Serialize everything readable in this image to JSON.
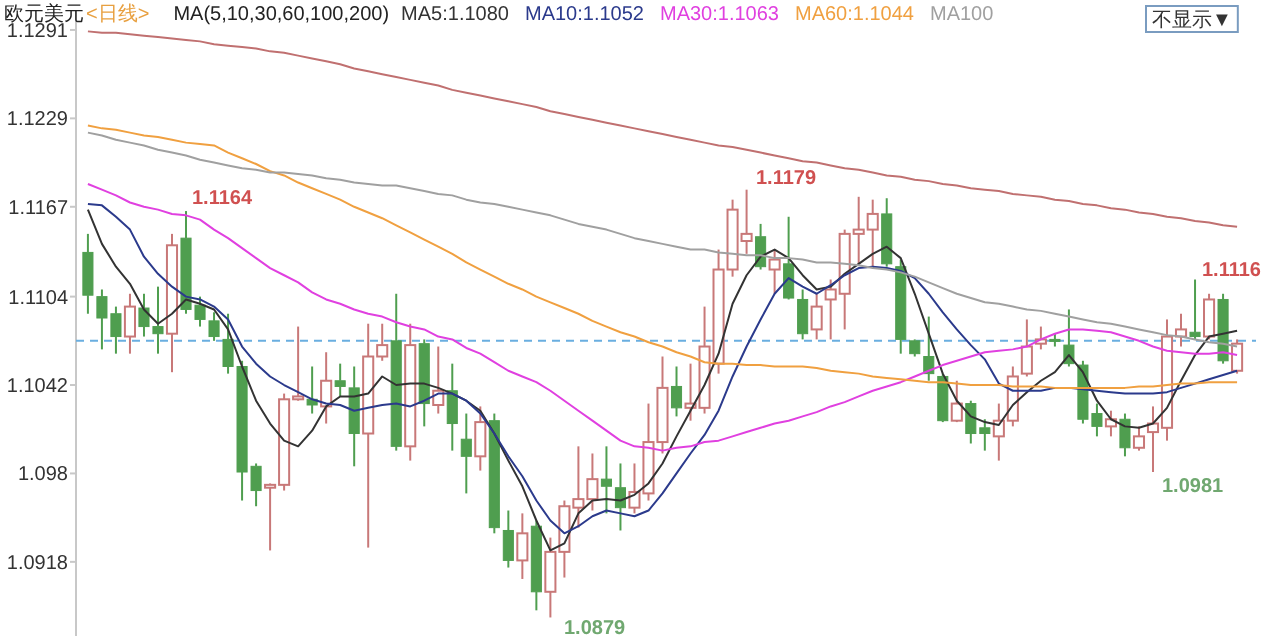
{
  "chart_data": {
    "type": "candlestick",
    "title": "欧元美元",
    "subtitle": "<日线>",
    "legend_title": "MA(5,10,30,60,100,200)",
    "legend": "top",
    "tick_labels": "y",
    "categories": [
      null,
      null,
      null,
      null,
      null,
      null,
      null,
      null,
      null,
      null,
      null,
      null,
      null,
      null,
      null,
      null,
      null,
      null,
      null,
      null,
      null,
      null,
      null,
      null,
      null,
      null,
      null,
      null,
      null,
      null,
      null,
      null,
      null,
      null,
      null,
      null,
      null,
      null,
      null,
      null,
      null,
      null,
      null,
      null,
      null,
      null,
      null,
      null,
      null,
      null,
      null,
      null,
      null,
      null,
      null,
      null,
      null,
      null,
      null,
      null,
      null,
      null,
      null,
      null,
      null,
      null,
      null,
      null,
      null,
      null,
      null,
      null,
      null,
      null,
      null,
      null,
      null,
      null,
      null,
      null,
      null,
      null,
      null
    ],
    "ohlc": [
      [
        1.1135,
        1.1148,
        1.1092,
        1.1105
      ],
      [
        1.1104,
        1.1109,
        1.1067,
        1.1089
      ],
      [
        1.1092,
        1.1097,
        1.1064,
        1.1076
      ],
      [
        1.1076,
        1.1106,
        1.1064,
        1.1097
      ],
      [
        1.1096,
        1.1106,
        1.1076,
        1.1083
      ],
      [
        1.1083,
        1.1111,
        1.1064,
        1.1078
      ],
      [
        1.1078,
        1.1148,
        1.1051,
        1.114
      ],
      [
        1.1145,
        1.1164,
        1.1092,
        1.1095
      ],
      [
        1.1098,
        1.1104,
        1.1083,
        1.1088
      ],
      [
        1.1087,
        1.1093,
        1.1073,
        1.1076
      ],
      [
        1.1074,
        1.1092,
        1.105,
        1.1055
      ],
      [
        1.1055,
        1.1059,
        1.0961,
        1.0981
      ],
      [
        1.0985,
        1.0987,
        1.0957,
        1.0968
      ],
      [
        1.097,
        1.0973,
        1.0926,
        1.0972
      ],
      [
        1.0972,
        1.1036,
        1.0968,
        1.1032
      ],
      [
        1.1032,
        1.1083,
        1.1031,
        1.1034
      ],
      [
        1.1032,
        1.1055,
        1.1022,
        1.1028
      ],
      [
        1.1027,
        1.1065,
        1.1015,
        1.1045
      ],
      [
        1.1045,
        1.1057,
        1.1034,
        1.1041
      ],
      [
        1.104,
        1.1055,
        1.0985,
        1.1008
      ],
      [
        1.1008,
        1.1085,
        1.0928,
        1.1062
      ],
      [
        1.1062,
        1.1085,
        1.1059,
        1.107
      ],
      [
        1.1073,
        1.1106,
        1.0996,
        1.0999
      ],
      [
        1.0999,
        1.1085,
        1.0989,
        1.107
      ],
      [
        1.1071,
        1.1074,
        1.1013,
        1.1029
      ],
      [
        1.1028,
        1.1069,
        1.1022,
        1.1038
      ],
      [
        1.1038,
        1.1057,
        1.0996,
        1.1015
      ],
      [
        1.1004,
        1.1022,
        1.0966,
        1.0992
      ],
      [
        1.0992,
        1.1027,
        1.0982,
        1.1016
      ],
      [
        1.1017,
        1.1022,
        1.0938,
        1.0942
      ],
      [
        1.094,
        1.0954,
        1.0914,
        1.0919
      ],
      [
        1.0919,
        1.0952,
        1.0906,
        1.0938
      ],
      [
        1.0943,
        1.0947,
        1.0884,
        1.0897
      ],
      [
        1.0897,
        1.0935,
        1.0879,
        1.0925
      ],
      [
        1.0925,
        1.0961,
        1.0907,
        1.0957
      ],
      [
        1.0956,
        1.0999,
        1.0942,
        1.0962
      ],
      [
        1.0962,
        1.0994,
        1.0954,
        1.0976
      ],
      [
        1.0976,
        1.0999,
        1.0952,
        1.0971
      ],
      [
        1.097,
        1.0987,
        1.094,
        1.0956
      ],
      [
        1.0956,
        1.0987,
        1.0952,
        1.0967
      ],
      [
        1.0966,
        1.1029,
        1.0961,
        1.1002
      ],
      [
        1.1002,
        1.1062,
        1.0994,
        1.104
      ],
      [
        1.1041,
        1.1055,
        1.102,
        1.1026
      ],
      [
        1.1026,
        1.1057,
        1.1017,
        1.1029
      ],
      [
        1.1026,
        1.1097,
        1.1022,
        1.1069
      ],
      [
        1.1057,
        1.1137,
        1.105,
        1.1123
      ],
      [
        1.1123,
        1.1172,
        1.1118,
        1.1165
      ],
      [
        1.1143,
        1.1179,
        1.1134,
        1.1148
      ],
      [
        1.1146,
        1.1155,
        1.1123,
        1.1125
      ],
      [
        1.1123,
        1.1137,
        1.1106,
        1.113
      ],
      [
        1.1127,
        1.116,
        1.1102,
        1.1103
      ],
      [
        1.1102,
        1.1109,
        1.1074,
        1.1078
      ],
      [
        1.1081,
        1.1106,
        1.1074,
        1.1097
      ],
      [
        1.1102,
        1.1116,
        1.1074,
        1.1109
      ],
      [
        1.1106,
        1.1151,
        1.1081,
        1.1148
      ],
      [
        1.1148,
        1.1174,
        1.1127,
        1.1151
      ],
      [
        1.1151,
        1.1172,
        1.1125,
        1.1162
      ],
      [
        1.1162,
        1.1173,
        1.1125,
        1.1127
      ],
      [
        1.1125,
        1.113,
        1.1064,
        1.1074
      ],
      [
        1.1073,
        1.1074,
        1.1062,
        1.1064
      ],
      [
        1.1062,
        1.109,
        1.1045,
        1.105
      ],
      [
        1.1048,
        1.105,
        1.1016,
        1.1017
      ],
      [
        1.1017,
        1.1045,
        1.1016,
        1.1029
      ],
      [
        1.1029,
        1.1031,
        1.1001,
        1.1008
      ],
      [
        1.1012,
        1.1018,
        1.0996,
        1.1008
      ],
      [
        1.1006,
        1.1029,
        1.0989,
        1.1017
      ],
      [
        1.1017,
        1.1055,
        1.1013,
        1.1048
      ],
      [
        1.105,
        1.1088,
        1.1048,
        1.1069
      ],
      [
        1.1071,
        1.1083,
        1.1067,
        1.1074
      ],
      [
        1.1074,
        1.1078,
        1.1069,
        1.1073
      ],
      [
        1.107,
        1.1095,
        1.1055,
        1.1057
      ],
      [
        1.1056,
        1.1059,
        1.1015,
        1.1018
      ],
      [
        1.1022,
        1.1029,
        1.1006,
        1.1013
      ],
      [
        1.1013,
        1.1024,
        1.1006,
        1.1018
      ],
      [
        1.1018,
        1.1022,
        1.0992,
        1.0998
      ],
      [
        1.0998,
        1.1013,
        1.0996,
        1.1006
      ],
      [
        1.1009,
        1.1027,
        1.0981,
        1.1015
      ],
      [
        1.1012,
        1.1088,
        1.1003,
        1.1076
      ],
      [
        1.1076,
        1.1092,
        1.1069,
        1.1081
      ],
      [
        1.1079,
        1.1116,
        1.1074,
        1.1076
      ],
      [
        1.1076,
        1.1106,
        1.1074,
        1.1102
      ],
      [
        1.1102,
        1.1106,
        1.1057,
        1.1059
      ],
      [
        1.1052,
        1.1074,
        1.105,
        1.1071
      ]
    ],
    "series": [
      {
        "type": "line",
        "name": "MA5:1.1080",
        "color": "#333333",
        "values": [
          1.1165,
          1.1141,
          1.1125,
          1.1113,
          1.1095,
          1.1085,
          1.1092,
          1.1102,
          1.1099,
          1.1095,
          1.1081,
          1.1055,
          1.1031,
          1.1015,
          1.1003,
          1.0999,
          1.101,
          1.1027,
          1.1034,
          1.1034,
          1.1036,
          1.1048,
          1.1042,
          1.1043,
          1.1043,
          1.104,
          1.1036,
          1.1031,
          1.1024,
          1.1008,
          1.0989,
          1.0971,
          1.0947,
          1.0926,
          1.0931,
          1.0952,
          1.0961,
          1.0962,
          1.0961,
          1.0965,
          1.0973,
          1.0987,
          1.1006,
          1.1024,
          1.1042,
          1.1064,
          1.1099,
          1.1119,
          1.1132,
          1.1137,
          1.1131,
          1.1119,
          1.1109,
          1.1111,
          1.112,
          1.1127,
          1.1134,
          1.1139,
          1.1131,
          1.1106,
          1.1078,
          1.105,
          1.1031,
          1.102,
          1.1016,
          1.1014,
          1.1028,
          1.1037,
          1.1045,
          1.1051,
          1.1063,
          1.1051,
          1.1031,
          1.1018,
          1.1013,
          1.1012,
          1.1015,
          1.1026,
          1.1045,
          1.1063,
          1.1076,
          1.1078,
          1.108
        ]
      },
      {
        "type": "line",
        "name": "MA10:1.1052",
        "color": "#2b3a8c",
        "values": [
          1.1169,
          1.1168,
          1.116,
          1.1151,
          1.1132,
          1.112,
          1.1111,
          1.1104,
          1.1102,
          1.1097,
          1.1088,
          1.1069,
          1.1057,
          1.1048,
          1.1042,
          1.1037,
          1.1032,
          1.1029,
          1.1028,
          1.1024,
          1.1026,
          1.1028,
          1.1029,
          1.1027,
          1.1031,
          1.1036,
          1.1036,
          1.1031,
          1.1022,
          1.1008,
          1.0992,
          1.0978,
          1.0961,
          1.0947,
          1.0938,
          1.0943,
          1.095,
          1.0954,
          1.0952,
          1.095,
          1.0954,
          1.0966,
          1.098,
          1.0994,
          1.1007,
          1.1024,
          1.1048,
          1.1069,
          1.1088,
          1.1106,
          1.1117,
          1.1111,
          1.1106,
          1.1112,
          1.1119,
          1.1124,
          1.1125,
          1.1124,
          1.1122,
          1.1117,
          1.1106,
          1.1093,
          1.1081,
          1.107,
          1.106,
          1.1043,
          1.1038,
          1.1038,
          1.1038,
          1.104,
          1.104,
          1.1039,
          1.1038,
          1.1037,
          1.1036,
          1.1036,
          1.1036,
          1.1037,
          1.104,
          1.1043,
          1.1046,
          1.1049,
          1.1052
        ]
      },
      {
        "type": "line",
        "name": "MA30:1.1063",
        "color": "#e040e0",
        "values": [
          1.1183,
          1.1179,
          1.1175,
          1.117,
          1.1167,
          1.1165,
          1.1162,
          1.1161,
          1.1158,
          1.1151,
          1.1145,
          1.1138,
          1.1131,
          1.1124,
          1.1119,
          1.1114,
          1.1107,
          1.1102,
          1.1099,
          1.1095,
          1.1092,
          1.109,
          1.1086,
          1.1083,
          1.1081,
          1.1076,
          1.1074,
          1.1068,
          1.1064,
          1.1058,
          1.1052,
          1.1048,
          1.1044,
          1.1038,
          1.1031,
          1.1024,
          1.1017,
          1.101,
          1.1003,
          1.0999,
          1.0998,
          1.0996,
          1.0998,
          1.0999,
          1.1002,
          1.1003,
          1.1006,
          1.1009,
          1.1012,
          1.1015,
          1.1017,
          1.102,
          1.1023,
          1.1027,
          1.103,
          1.1034,
          1.1038,
          1.1041,
          1.1044,
          1.1048,
          1.1052,
          1.1056,
          1.1059,
          1.1062,
          1.1065,
          1.1066,
          1.1067,
          1.1069,
          1.1074,
          1.1078,
          1.1081,
          1.1081,
          1.108,
          1.1079,
          1.1076,
          1.1073,
          1.1069,
          1.1066,
          1.1065,
          1.1064,
          1.1064,
          1.1065,
          1.1063
        ]
      },
      {
        "type": "line",
        "name": "MA60:1.1044",
        "color": "#f0a040",
        "values": [
          1.1224,
          1.1222,
          1.1221,
          1.1219,
          1.1217,
          1.1216,
          1.1214,
          1.1212,
          1.1211,
          1.121,
          1.1205,
          1.1201,
          1.1197,
          1.1192,
          1.1189,
          1.1184,
          1.118,
          1.1176,
          1.1172,
          1.1167,
          1.1163,
          1.1159,
          1.1154,
          1.1149,
          1.1144,
          1.1139,
          1.1134,
          1.1128,
          1.1123,
          1.1118,
          1.1113,
          1.1109,
          1.1104,
          1.11,
          1.1096,
          1.1092,
          1.1087,
          1.1083,
          1.1079,
          1.1076,
          1.1072,
          1.1069,
          1.1065,
          1.1062,
          1.1058,
          1.1057,
          1.1057,
          1.1056,
          1.1056,
          1.1055,
          1.1055,
          1.1055,
          1.1054,
          1.1052,
          1.1051,
          1.105,
          1.1048,
          1.1047,
          1.1046,
          1.1045,
          1.1044,
          1.1044,
          1.1043,
          1.1042,
          1.1042,
          1.1042,
          1.1041,
          1.1041,
          1.1041,
          1.104,
          1.104,
          1.104,
          1.104,
          1.104,
          1.104,
          1.1041,
          1.1041,
          1.1042,
          1.1043,
          1.1043,
          1.1044,
          1.1044,
          1.1044
        ]
      },
      {
        "type": "line",
        "name": "MA100",
        "color": "#a0a0a0",
        "values": [
          1.1219,
          1.1217,
          1.1214,
          1.1212,
          1.121,
          1.1207,
          1.1205,
          1.1203,
          1.12,
          1.1198,
          1.1196,
          1.1194,
          1.1193,
          1.1191,
          1.1191,
          1.119,
          1.1189,
          1.1187,
          1.1186,
          1.1184,
          1.1183,
          1.1182,
          1.1182,
          1.118,
          1.1178,
          1.1176,
          1.1175,
          1.1172,
          1.117,
          1.1169,
          1.1167,
          1.1165,
          1.1163,
          1.1161,
          1.1158,
          1.1155,
          1.1153,
          1.1151,
          1.1148,
          1.1145,
          1.1143,
          1.1141,
          1.1139,
          1.1137,
          1.1137,
          1.1135,
          1.1134,
          1.1133,
          1.1133,
          1.1131,
          1.1131,
          1.113,
          1.1128,
          1.1128,
          1.1127,
          1.1126,
          1.1124,
          1.1123,
          1.1121,
          1.1118,
          1.1114,
          1.111,
          1.1106,
          1.1103,
          1.11,
          1.1099,
          1.1097,
          1.1095,
          1.1094,
          1.1092,
          1.109,
          1.1088,
          1.1086,
          1.1085,
          1.1083,
          1.1081,
          1.1079,
          1.1077,
          1.1076,
          1.1074,
          1.1072,
          1.1071,
          1.1069
        ]
      },
      {
        "type": "line",
        "color": "#c07070",
        "values": [
          1.129,
          1.1289,
          1.1289,
          1.1288,
          1.1287,
          1.1286,
          1.1285,
          1.1284,
          1.1283,
          1.1281,
          1.128,
          1.1279,
          1.1278,
          1.1276,
          1.1275,
          1.1273,
          1.1271,
          1.1269,
          1.1267,
          1.1264,
          1.1262,
          1.126,
          1.1258,
          1.1256,
          1.1254,
          1.1252,
          1.1249,
          1.1247,
          1.1245,
          1.1243,
          1.1241,
          1.1239,
          1.1237,
          1.1234,
          1.1232,
          1.123,
          1.1228,
          1.1226,
          1.1224,
          1.1222,
          1.122,
          1.1218,
          1.1216,
          1.1214,
          1.1212,
          1.121,
          1.1209,
          1.1207,
          1.1205,
          1.1203,
          1.1201,
          1.1199,
          1.1198,
          1.1196,
          1.1194,
          1.1193,
          1.1191,
          1.1189,
          1.1188,
          1.1186,
          1.1185,
          1.1183,
          1.1182,
          1.118,
          1.1179,
          1.1178,
          1.1176,
          1.1175,
          1.1174,
          1.1172,
          1.1171,
          1.1169,
          1.1168,
          1.1166,
          1.1165,
          1.1163,
          1.1162,
          1.116,
          1.1159,
          1.1157,
          1.1156,
          1.1154,
          1.1153
        ]
      }
    ],
    "ylim": [
      1.0866,
      1.1305
    ],
    "yticks": [
      1.1291,
      1.1229,
      1.1167,
      1.1104,
      1.1042,
      1.098,
      1.0918
    ],
    "ref_lines": [
      {
        "axis": "y",
        "value": 1.1073,
        "color": "#6aaee0",
        "line_style": "dashed"
      }
    ],
    "annotations": [
      "1.1164",
      "1.1179",
      "1.1116",
      "1.0981",
      "1.0879",
      "不显示▼"
    ]
  }
}
